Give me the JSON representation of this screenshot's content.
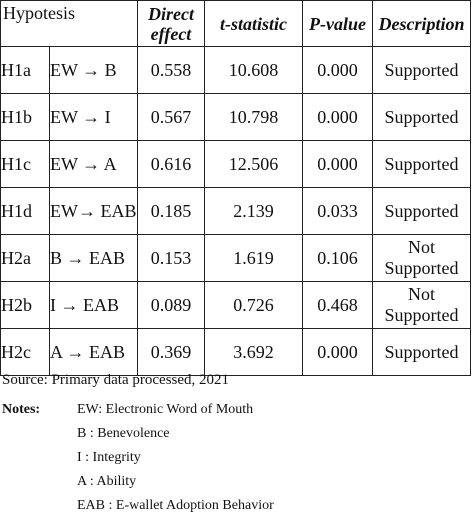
{
  "table": {
    "headers": {
      "hypothesis": "Hypotesis",
      "direct_effect": "Direct effect",
      "t_statistic": "t-statistic",
      "p_value": "P-value",
      "description": "Description"
    },
    "rows": [
      {
        "code": "H1a",
        "path": "EW → B",
        "direct_effect": "0.558",
        "t_statistic": "10.608",
        "p_value": "0.000",
        "description": "Supported"
      },
      {
        "code": "H1b",
        "path": "EW → I",
        "direct_effect": "0.567",
        "t_statistic": "10.798",
        "p_value": "0.000",
        "description": "Supported"
      },
      {
        "code": "H1c",
        "path": "EW → A",
        "direct_effect": "0.616",
        "t_statistic": "12.506",
        "p_value": "0.000",
        "description": "Supported"
      },
      {
        "code": "H1d",
        "path": "EW→ EAB",
        "direct_effect": "0.185",
        "t_statistic": "2.139",
        "p_value": "0.033",
        "description": "Supported"
      },
      {
        "code": "H2a",
        "path": "B → EAB",
        "direct_effect": "0.153",
        "t_statistic": "1.619",
        "p_value": "0.106",
        "description": "Not Supported"
      },
      {
        "code": "H2b",
        "path": "I → EAB",
        "direct_effect": "0.089",
        "t_statistic": "0.726",
        "p_value": "0.468",
        "description": "Not Supported"
      },
      {
        "code": "H2c",
        "path": "A → EAB",
        "direct_effect": "0.369",
        "t_statistic": "3.692",
        "p_value": "0.000",
        "description": "Supported"
      }
    ]
  },
  "source": "Source: Primary data processed, 2021",
  "notes": {
    "label": "Notes:",
    "items": [
      "EW: Electronic Word of Mouth",
      "B : Benevolence",
      "I : Integrity",
      "A : Ability",
      "EAB : E-wallet Adoption Behavior"
    ]
  }
}
